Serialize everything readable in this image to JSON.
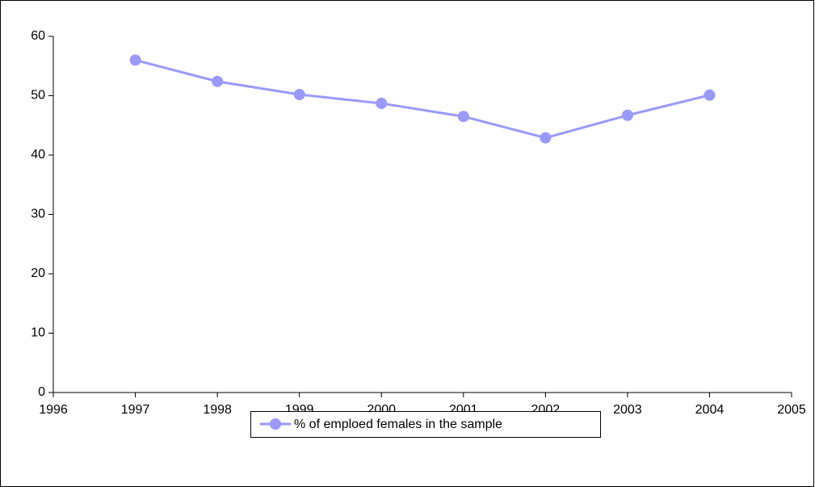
{
  "chart_data": {
    "type": "line",
    "x": [
      1997,
      1998,
      1999,
      2000,
      2001,
      2002,
      2003,
      2004
    ],
    "series": [
      {
        "name": "% of emploed females in the sample",
        "color": "#9999ff",
        "values": [
          56,
          52.4,
          50.2,
          48.7,
          46.5,
          42.9,
          46.7,
          50.1
        ]
      }
    ],
    "xlim": [
      1996,
      2005
    ],
    "xticks": [
      1996,
      1997,
      1998,
      1999,
      2000,
      2001,
      2002,
      2003,
      2004,
      2005
    ],
    "ylim": [
      0,
      60
    ],
    "yticks": [
      0,
      10,
      20,
      30,
      40,
      50,
      60
    ],
    "grid": false,
    "legend": "bottom"
  }
}
